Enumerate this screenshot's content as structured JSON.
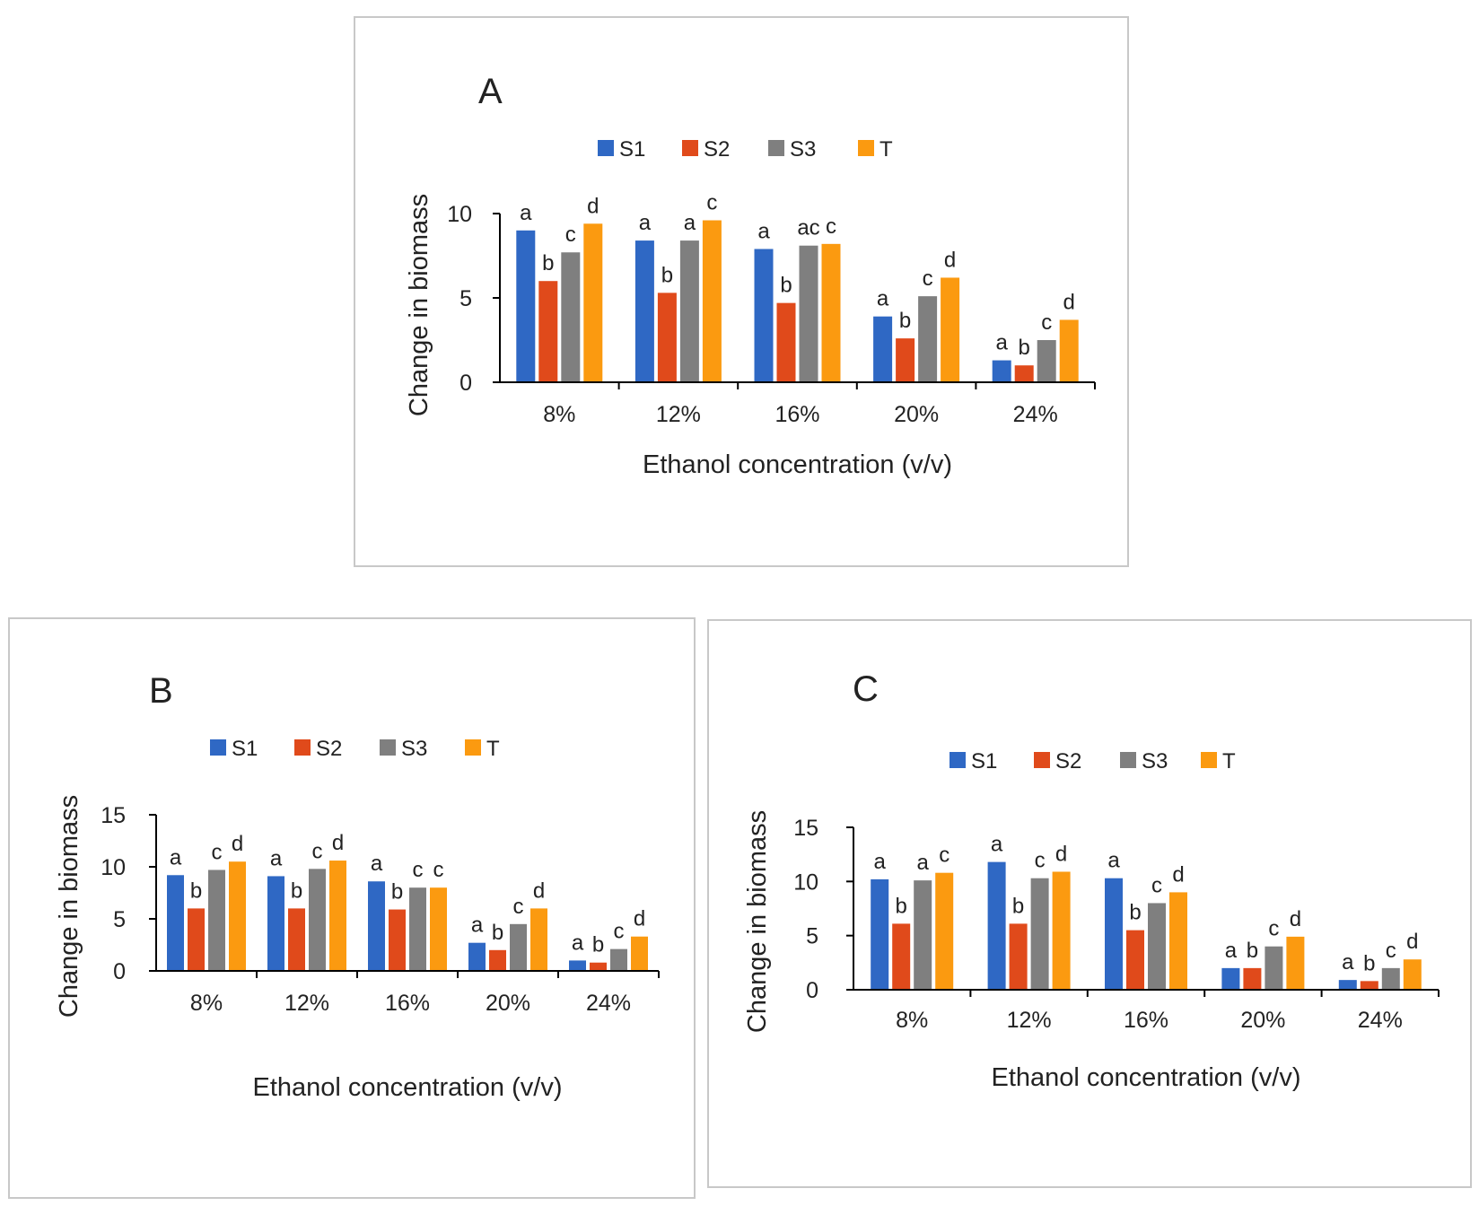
{
  "chart_data": [
    {
      "type": "bar",
      "panel_letter": "A",
      "categories": [
        "8%",
        "12%",
        "16%",
        "20%",
        "24%"
      ],
      "series": [
        {
          "name": "S1",
          "color": "#2f68c4",
          "values": [
            9.0,
            8.4,
            7.9,
            3.9,
            1.3
          ],
          "sig": [
            "a",
            "a",
            "a",
            "a",
            "a"
          ]
        },
        {
          "name": "S2",
          "color": "#e04a1b",
          "values": [
            6.0,
            5.3,
            4.7,
            2.6,
            1.0
          ],
          "sig": [
            "b",
            "b",
            "b",
            "b",
            "b"
          ]
        },
        {
          "name": "S3",
          "color": "#7f7f7f",
          "values": [
            7.7,
            8.4,
            8.1,
            5.1,
            2.5
          ],
          "sig": [
            "c",
            "a",
            "ac",
            "c",
            "c"
          ]
        },
        {
          "name": "T",
          "color": "#fb9a10",
          "values": [
            9.4,
            9.6,
            8.2,
            6.2,
            3.7
          ],
          "sig": [
            "d",
            "c",
            "c",
            "d",
            "d"
          ]
        }
      ],
      "xlabel": "Ethanol concentration  (v/v)",
      "ylabel": "Change in biomass",
      "yticks": [
        0,
        5,
        10
      ],
      "ylim": [
        0,
        10
      ],
      "legend_position": "top-center",
      "grid": false
    },
    {
      "type": "bar",
      "panel_letter": "B",
      "categories": [
        "8%",
        "12%",
        "16%",
        "20%",
        "24%"
      ],
      "series": [
        {
          "name": "S1",
          "color": "#2f68c4",
          "values": [
            9.2,
            9.1,
            8.6,
            2.7,
            1.0
          ],
          "sig": [
            "a",
            "a",
            "a",
            "a",
            "a"
          ]
        },
        {
          "name": "S2",
          "color": "#e04a1b",
          "values": [
            6.0,
            6.0,
            5.9,
            2.0,
            0.8
          ],
          "sig": [
            "b",
            "b",
            "b",
            "b",
            "b"
          ]
        },
        {
          "name": "S3",
          "color": "#7f7f7f",
          "values": [
            9.7,
            9.8,
            8.0,
            4.5,
            2.1
          ],
          "sig": [
            "c",
            "c",
            "c",
            "c",
            "c"
          ]
        },
        {
          "name": "T",
          "color": "#fb9a10",
          "values": [
            10.5,
            10.6,
            8.0,
            6.0,
            3.3
          ],
          "sig": [
            "d",
            "d",
            "c",
            "d",
            "d"
          ]
        }
      ],
      "xlabel": "Ethanol concentration  (v/v)",
      "ylabel": "Change in biomass",
      "yticks": [
        0,
        5,
        10,
        15
      ],
      "ylim": [
        0,
        15
      ],
      "legend_position": "top-center",
      "grid": false
    },
    {
      "type": "bar",
      "panel_letter": "C",
      "categories": [
        "8%",
        "12%",
        "16%",
        "20%",
        "24%"
      ],
      "series": [
        {
          "name": "S1",
          "color": "#2f68c4",
          "values": [
            10.2,
            11.8,
            10.3,
            2.0,
            0.9
          ],
          "sig": [
            "a",
            "a",
            "a",
            "a",
            "a"
          ]
        },
        {
          "name": "S2",
          "color": "#e04a1b",
          "values": [
            6.1,
            6.1,
            5.5,
            2.0,
            0.8
          ],
          "sig": [
            "b",
            "b",
            "b",
            "b",
            "b"
          ]
        },
        {
          "name": "S3",
          "color": "#7f7f7f",
          "values": [
            10.1,
            10.3,
            8.0,
            4.0,
            2.0
          ],
          "sig": [
            "a",
            "c",
            "c",
            "c",
            "c"
          ]
        },
        {
          "name": "T",
          "color": "#fb9a10",
          "values": [
            10.8,
            10.9,
            9.0,
            4.9,
            2.8
          ],
          "sig": [
            "c",
            "d",
            "d",
            "d",
            "d"
          ]
        }
      ],
      "xlabel": "Ethanol concentration  (v/v)",
      "ylabel": "Change in biomass",
      "yticks": [
        0,
        5,
        10,
        15
      ],
      "ylim": [
        0,
        15
      ],
      "legend_position": "top-center",
      "grid": false
    }
  ]
}
